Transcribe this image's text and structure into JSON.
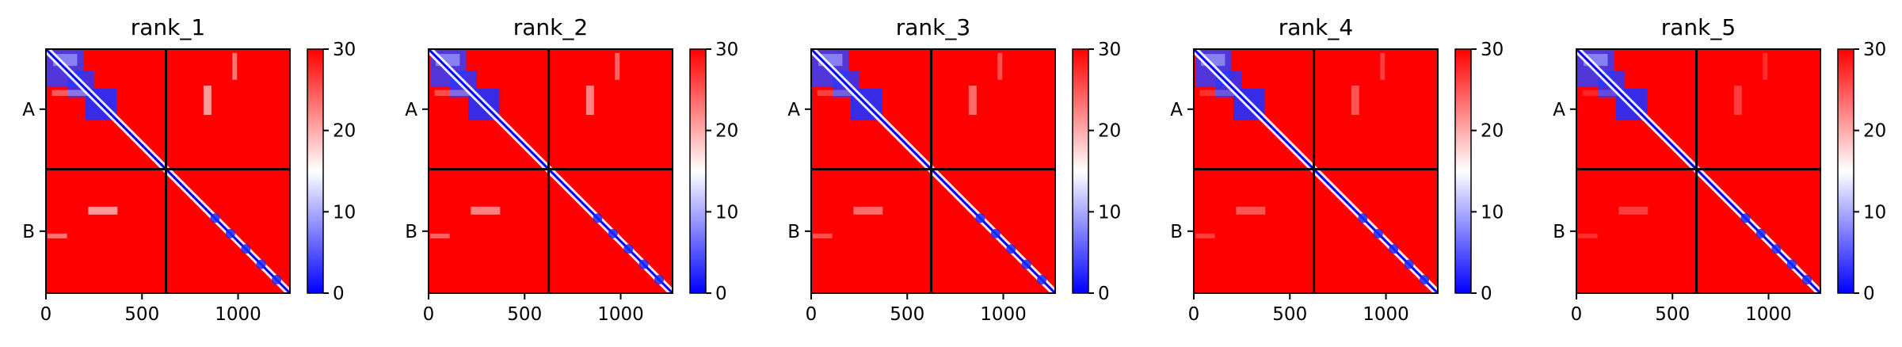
{
  "chart_data": {
    "type": "heatmap",
    "colormap": {
      "low": "#0000ff",
      "mid": "#ffffff",
      "high": "#ff0000"
    },
    "color_range": [
      0,
      30
    ],
    "colorbar_ticks": [
      "0",
      "10",
      "20",
      "30"
    ],
    "x_ticks": [
      {
        "value": 0,
        "label": "0"
      },
      {
        "value": 500,
        "label": "500"
      },
      {
        "value": 1000,
        "label": "1000"
      }
    ],
    "x_range": [
      0,
      1270
    ],
    "chain_boundary": 625,
    "chains": [
      {
        "label": "A",
        "start": 0,
        "end": 625
      },
      {
        "label": "B",
        "start": 625,
        "end": 1270
      }
    ],
    "panels": [
      {
        "title": "rank_1"
      },
      {
        "title": "rank_2"
      },
      {
        "title": "rank_3"
      },
      {
        "title": "rank_4"
      },
      {
        "title": "rank_5"
      }
    ]
  }
}
